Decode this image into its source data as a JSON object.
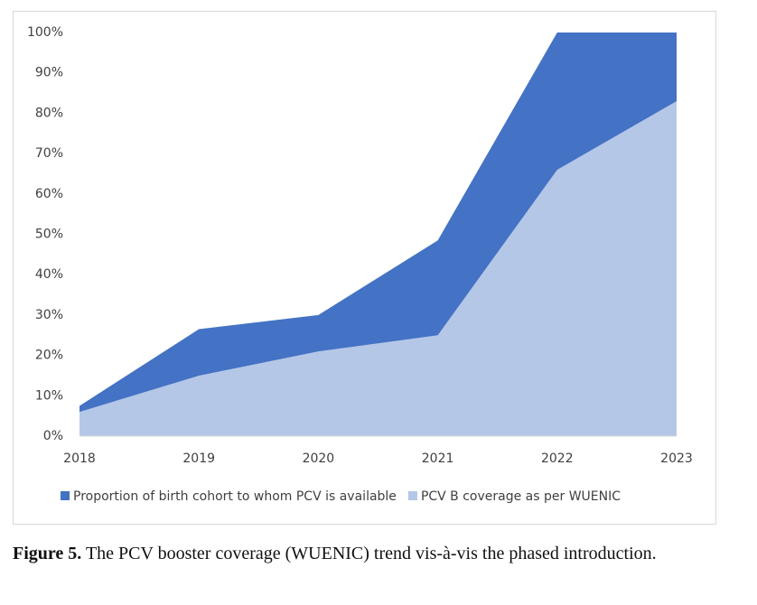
{
  "chart_data": {
    "type": "area",
    "categories": [
      "2018",
      "2019",
      "2020",
      "2021",
      "2022",
      "2023"
    ],
    "series": [
      {
        "name": "Proportion of birth cohort to whom PCV is available",
        "color": "#4472c4",
        "values": [
          7.5,
          26.5,
          30,
          48.5,
          100,
          100
        ]
      },
      {
        "name": "PCV B coverage as per WUENIC",
        "color": "#b4c7e7",
        "values": [
          6,
          15,
          21,
          25,
          66,
          83
        ]
      }
    ],
    "ylim": [
      0,
      100
    ],
    "yticks": [
      {
        "value": 0,
        "label": "0%"
      },
      {
        "value": 10,
        "label": "10%"
      },
      {
        "value": 20,
        "label": "20%"
      },
      {
        "value": 30,
        "label": "30%"
      },
      {
        "value": 40,
        "label": "40%"
      },
      {
        "value": 50,
        "label": "50%"
      },
      {
        "value": 60,
        "label": "60%"
      },
      {
        "value": 70,
        "label": "70%"
      },
      {
        "value": 80,
        "label": "80%"
      },
      {
        "value": 90,
        "label": "90%"
      },
      {
        "value": 100,
        "label": "100%"
      }
    ],
    "grid": false,
    "legend": "bottom"
  },
  "caption": {
    "label": "Figure 5.",
    "text": "The PCV booster coverage (WUENIC) trend vis-à-vis the phased introduction."
  }
}
